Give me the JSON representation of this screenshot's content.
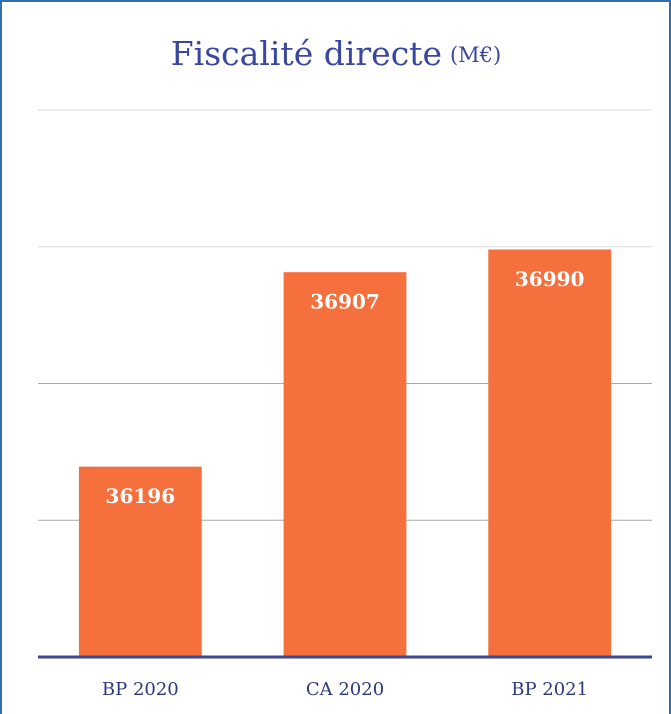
{
  "chart_data": {
    "type": "bar",
    "title": "Fiscalité directe",
    "unit": "(M€)",
    "categories": [
      "BP 2020",
      "CA 2020",
      "BP 2021"
    ],
    "values": [
      36196,
      36907,
      36990
    ],
    "color": "#f5703d",
    "ylim": [
      35500,
      37500
    ],
    "yticks": [
      36000,
      36500,
      37000,
      37500
    ],
    "grid": true
  }
}
